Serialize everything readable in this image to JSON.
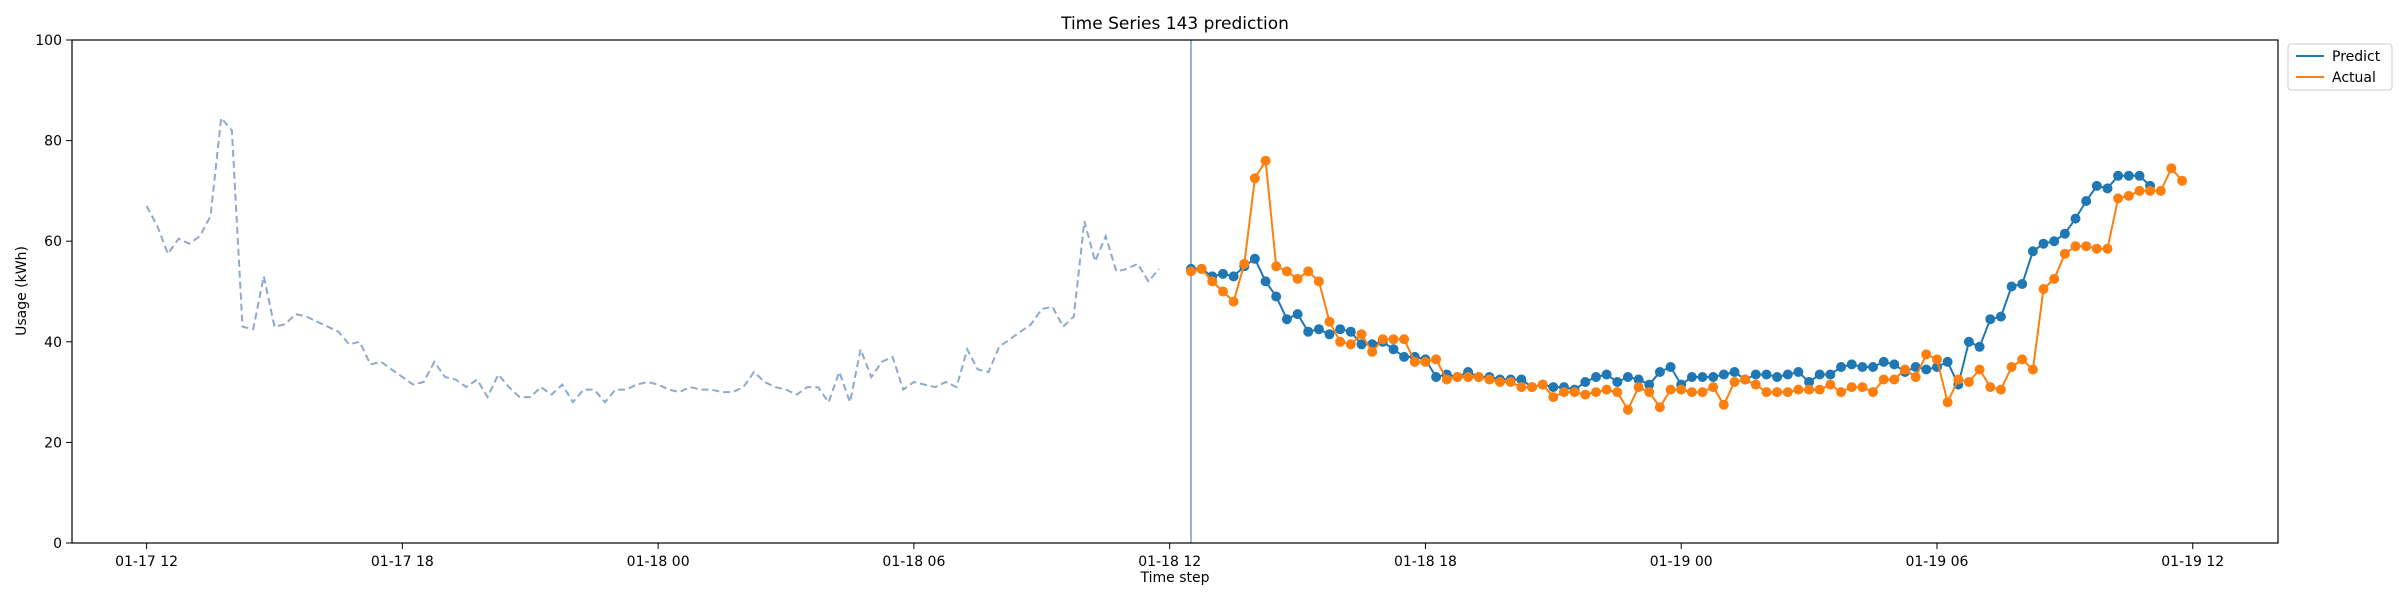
{
  "chart_data": {
    "type": "line",
    "title": "Time Series 143 prediction",
    "xlabel": "Time step",
    "ylabel": "Usage (kWh)",
    "ylim": [
      0,
      100
    ],
    "yticks": [
      0,
      20,
      40,
      60,
      80,
      100
    ],
    "xlim": [
      "2024-01-17 10:15",
      "2024-01-19 14:00"
    ],
    "xticks": [
      {
        "t": "2024-01-17 12:00",
        "label": "01-17 12"
      },
      {
        "t": "2024-01-17 18:00",
        "label": "01-17 18"
      },
      {
        "t": "2024-01-18 00:00",
        "label": "01-18 00"
      },
      {
        "t": "2024-01-18 06:00",
        "label": "01-18 06"
      },
      {
        "t": "2024-01-18 12:00",
        "label": "01-18 12"
      },
      {
        "t": "2024-01-18 18:00",
        "label": "01-18 18"
      },
      {
        "t": "2024-01-19 00:00",
        "label": "01-19 00"
      },
      {
        "t": "2024-01-19 06:00",
        "label": "01-19 06"
      },
      {
        "t": "2024-01-19 12:00",
        "label": "01-19 12"
      }
    ],
    "grid": false,
    "legend_position": "upper right outside",
    "forecast_start": "2024-01-18 12:30",
    "series": [
      {
        "key": "history",
        "style": "dashed",
        "color": "#8fa8cf",
        "start": "2024-01-17 12:00",
        "step_minutes": 15,
        "values": [
          67,
          63,
          57.5,
          60.5,
          59.5,
          61,
          65,
          84.5,
          82,
          43,
          42.5,
          53,
          43,
          43.5,
          45.5,
          45,
          44,
          43,
          42,
          39.5,
          40,
          35.5,
          36,
          34.5,
          33,
          31.5,
          32,
          36,
          33,
          32.5,
          31,
          32.5,
          29,
          33.5,
          31,
          29,
          29,
          31,
          29.5,
          31.5,
          28,
          30.5,
          30.5,
          28,
          30.5,
          30.5,
          31.5,
          32,
          31.5,
          30.5,
          30,
          31,
          30.5,
          30.5,
          30,
          30,
          31,
          34,
          32,
          31,
          30.5,
          29.5,
          31,
          31,
          28,
          34,
          28,
          38.5,
          33,
          36,
          37,
          30.5,
          32,
          31.5,
          31,
          32,
          31,
          38.5,
          34.5,
          34,
          39,
          40.5,
          42,
          43.5,
          46.5,
          47,
          43,
          45,
          64,
          56,
          61,
          54,
          54.5,
          55.5,
          52,
          54.5
        ]
      },
      {
        "name": "Predict",
        "color": "#1f77b4",
        "start": "2024-01-18 12:30",
        "step_minutes": 15,
        "values": [
          54.5,
          54.5,
          53,
          53.5,
          53,
          55,
          56.5,
          52,
          49,
          44.5,
          45.5,
          42,
          42.5,
          41.5,
          42.5,
          42,
          39.5,
          39.5,
          40,
          38.5,
          37,
          37,
          36.5,
          33,
          33.5,
          33,
          34,
          33,
          33,
          32.5,
          32.5,
          32.5,
          31,
          31.5,
          31,
          31,
          30.5,
          32,
          33,
          33.5,
          32,
          33,
          32.5,
          31.5,
          34,
          35,
          31.5,
          33,
          33,
          33,
          33.5,
          34,
          32.5,
          33.5,
          33.5,
          33,
          33.5,
          34,
          32,
          33.5,
          33.5,
          35,
          35.5,
          35,
          35,
          36,
          35.5,
          34,
          35,
          34.5,
          35,
          36,
          31.5,
          40,
          39,
          44.5,
          45,
          51,
          51.5,
          58,
          59.5,
          60,
          61.5,
          64.5,
          68,
          71,
          70.5,
          73,
          73,
          73,
          71
        ]
      },
      {
        "name": "Actual",
        "color": "#ff7f0e",
        "start": "2024-01-18 12:30",
        "step_minutes": 15,
        "values": [
          54,
          54.5,
          52,
          50,
          48,
          55.5,
          72.5,
          76,
          55,
          54,
          52.5,
          54,
          52,
          44,
          40,
          39.5,
          41.5,
          38,
          40.5,
          40.5,
          40.5,
          36,
          36,
          36.5,
          32.5,
          33,
          33,
          33,
          32.5,
          32,
          32,
          31,
          31,
          31.5,
          29,
          30,
          30,
          29.5,
          30,
          30.5,
          30,
          26.5,
          31,
          30,
          27,
          30.5,
          30.5,
          30,
          30,
          31,
          27.5,
          32,
          32.5,
          31.5,
          30,
          30,
          30,
          30.5,
          30.5,
          30.5,
          31.5,
          30,
          31,
          31,
          30,
          32.5,
          32.5,
          34.5,
          33,
          37.5,
          36.5,
          28,
          32.5,
          32,
          34.5,
          31,
          30.5,
          35,
          36.5,
          34.5,
          50.5,
          52.5,
          57.5,
          59,
          59,
          58.5,
          58.5,
          68.5,
          69,
          70,
          70,
          70,
          74.5,
          72
        ]
      }
    ]
  }
}
